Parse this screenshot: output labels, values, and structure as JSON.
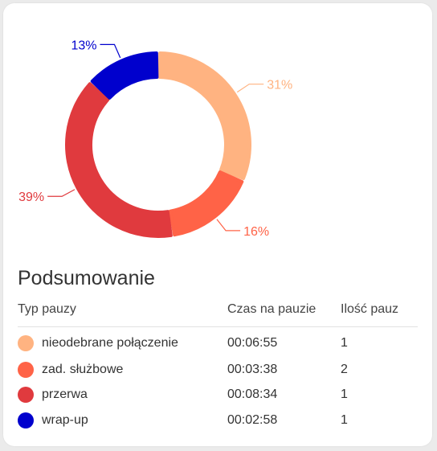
{
  "chart_data": {
    "type": "pie",
    "donut": true,
    "slices": [
      {
        "label": "nieodebrane połączenie",
        "percent": 31,
        "percent_label": "31%",
        "color": "#FFB381"
      },
      {
        "label": "zad. służbowe",
        "percent": 16,
        "percent_label": "16%",
        "color": "#FF6347"
      },
      {
        "label": "przerwa",
        "percent": 39,
        "percent_label": "39%",
        "color": "#E03A3E"
      },
      {
        "label": "wrap-up",
        "percent": 13,
        "percent_label": "13%",
        "color": "#0000CD"
      }
    ]
  },
  "summary": {
    "title": "Podsumowanie",
    "headers": {
      "type": "Typ pauzy",
      "time": "Czas na pauzie",
      "count": "Ilość pauz"
    },
    "rows": [
      {
        "name": "nieodebrane połączenie",
        "time": "00:06:55",
        "count": "1",
        "color": "#FFB381"
      },
      {
        "name": "zad. służbowe",
        "time": "00:03:38",
        "count": "2",
        "color": "#FF6347"
      },
      {
        "name": "przerwa",
        "time": "00:08:34",
        "count": "1",
        "color": "#E03A3E"
      },
      {
        "name": "wrap-up",
        "time": "00:02:58",
        "count": "1",
        "color": "#0000CD"
      }
    ]
  }
}
